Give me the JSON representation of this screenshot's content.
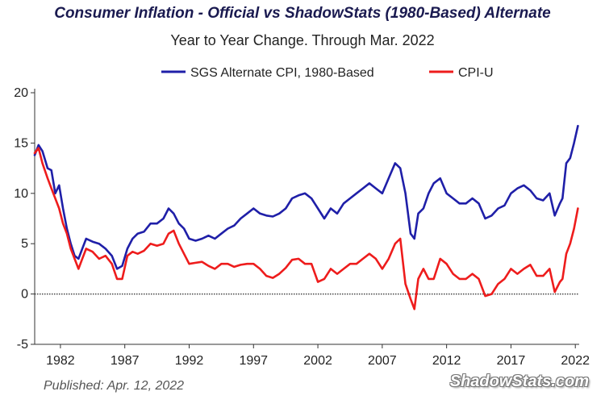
{
  "chart_data": {
    "type": "line",
    "title": "Consumer Inflation - Official vs ShadowStats (1980-Based) Alternate",
    "subtitle": "Year to Year Change. Through Mar. 2022",
    "xlabel": "",
    "ylabel": "",
    "xlim": [
      1980.0,
      2022.3
    ],
    "ylim": [
      -5,
      20
    ],
    "yticks": [
      -5,
      0,
      5,
      10,
      15,
      20
    ],
    "ytick_labels": [
      "-5",
      "0",
      "5",
      "10",
      "15",
      "20"
    ],
    "xticks": [
      1982,
      1987,
      1992,
      1997,
      2002,
      2007,
      2012,
      2017,
      2022
    ],
    "xtick_labels": [
      "1982",
      "1987",
      "1992",
      "1997",
      "2002",
      "2007",
      "2012",
      "2017",
      "2022"
    ],
    "zero_line": true,
    "grid": false,
    "legend_position": "top-center",
    "series": [
      {
        "name": "SGS Alternate CPI, 1980-Based",
        "color": "#1f1fa8",
        "x": [
          1980.0,
          1980.3,
          1980.6,
          1981.0,
          1981.3,
          1981.6,
          1981.9,
          1982.2,
          1982.5,
          1982.8,
          1983.1,
          1983.4,
          1983.7,
          1984.0,
          1984.5,
          1985.0,
          1985.5,
          1986.0,
          1986.4,
          1986.8,
          1987.2,
          1987.6,
          1988.0,
          1988.5,
          1989.0,
          1989.5,
          1990.0,
          1990.4,
          1990.8,
          1991.2,
          1991.6,
          1992.0,
          1992.5,
          1993.0,
          1993.5,
          1994.0,
          1994.5,
          1995.0,
          1995.5,
          1996.0,
          1996.5,
          1997.0,
          1997.5,
          1998.0,
          1998.5,
          1999.0,
          1999.5,
          2000.0,
          2000.5,
          2001.0,
          2001.5,
          2002.0,
          2002.5,
          2003.0,
          2003.5,
          2004.0,
          2004.5,
          2005.0,
          2005.5,
          2006.0,
          2006.5,
          2007.0,
          2007.5,
          2008.0,
          2008.4,
          2008.8,
          2009.2,
          2009.5,
          2009.8,
          2010.2,
          2010.6,
          2011.0,
          2011.5,
          2012.0,
          2012.5,
          2013.0,
          2013.5,
          2014.0,
          2014.5,
          2015.0,
          2015.5,
          2016.0,
          2016.5,
          2017.0,
          2017.5,
          2018.0,
          2018.5,
          2019.0,
          2019.5,
          2020.0,
          2020.4,
          2020.8,
          2021.0,
          2021.3,
          2021.6,
          2021.9,
          2022.2
        ],
        "values": [
          13.8,
          14.8,
          14.2,
          12.5,
          12.3,
          10.0,
          10.8,
          8.5,
          6.5,
          5.0,
          3.8,
          3.5,
          4.5,
          5.5,
          5.2,
          5.0,
          4.5,
          3.8,
          2.5,
          2.8,
          4.5,
          5.5,
          6.0,
          6.2,
          7.0,
          7.0,
          7.5,
          8.5,
          8.0,
          7.0,
          6.5,
          5.5,
          5.3,
          5.5,
          5.8,
          5.5,
          6.0,
          6.5,
          6.8,
          7.5,
          8.0,
          8.5,
          8.0,
          7.8,
          7.7,
          8.0,
          8.5,
          9.5,
          9.8,
          10.0,
          9.5,
          8.5,
          7.5,
          8.5,
          8.0,
          9.0,
          9.5,
          10.0,
          10.5,
          11.0,
          10.5,
          10.0,
          11.5,
          13.0,
          12.5,
          10.0,
          6.0,
          5.5,
          8.0,
          8.5,
          10.0,
          11.0,
          11.5,
          10.0,
          9.5,
          9.0,
          9.0,
          9.5,
          9.0,
          7.5,
          7.8,
          8.5,
          8.8,
          10.0,
          10.5,
          10.8,
          10.3,
          9.5,
          9.3,
          10.0,
          7.8,
          9.0,
          9.5,
          13.0,
          13.5,
          15.0,
          16.7
        ]
      },
      {
        "name": "CPI-U",
        "color": "#ee1c1c",
        "x": [
          1980.0,
          1980.3,
          1980.6,
          1981.0,
          1981.3,
          1981.6,
          1981.9,
          1982.2,
          1982.5,
          1982.8,
          1983.1,
          1983.4,
          1983.7,
          1984.0,
          1984.5,
          1985.0,
          1985.5,
          1986.0,
          1986.4,
          1986.8,
          1987.2,
          1987.6,
          1988.0,
          1988.5,
          1989.0,
          1989.5,
          1990.0,
          1990.4,
          1990.8,
          1991.2,
          1991.6,
          1992.0,
          1992.5,
          1993.0,
          1993.5,
          1994.0,
          1994.5,
          1995.0,
          1995.5,
          1996.0,
          1996.5,
          1997.0,
          1997.5,
          1998.0,
          1998.5,
          1999.0,
          1999.5,
          2000.0,
          2000.5,
          2001.0,
          2001.5,
          2002.0,
          2002.5,
          2003.0,
          2003.5,
          2004.0,
          2004.5,
          2005.0,
          2005.5,
          2006.0,
          2006.5,
          2007.0,
          2007.5,
          2008.0,
          2008.4,
          2008.8,
          2009.2,
          2009.5,
          2009.8,
          2010.2,
          2010.6,
          2011.0,
          2011.5,
          2012.0,
          2012.5,
          2013.0,
          2013.5,
          2014.0,
          2014.5,
          2015.0,
          2015.5,
          2016.0,
          2016.5,
          2017.0,
          2017.5,
          2018.0,
          2018.5,
          2019.0,
          2019.5,
          2020.0,
          2020.4,
          2020.8,
          2021.0,
          2021.3,
          2021.6,
          2021.9,
          2022.2
        ],
        "values": [
          14.0,
          14.5,
          13.0,
          11.5,
          10.5,
          9.5,
          8.5,
          7.0,
          6.0,
          4.5,
          3.5,
          2.5,
          3.5,
          4.5,
          4.2,
          3.5,
          3.8,
          3.0,
          1.5,
          1.5,
          3.8,
          4.2,
          4.0,
          4.3,
          5.0,
          4.8,
          5.0,
          6.0,
          6.3,
          5.0,
          4.0,
          3.0,
          3.1,
          3.2,
          2.8,
          2.5,
          3.0,
          3.0,
          2.7,
          2.9,
          3.0,
          3.0,
          2.5,
          1.8,
          1.6,
          2.0,
          2.6,
          3.4,
          3.5,
          3.0,
          3.0,
          1.2,
          1.5,
          2.5,
          2.0,
          2.5,
          3.0,
          3.0,
          3.5,
          4.0,
          3.5,
          2.5,
          3.5,
          5.0,
          5.5,
          1.0,
          -0.5,
          -1.5,
          1.5,
          2.5,
          1.5,
          1.5,
          3.5,
          3.0,
          2.0,
          1.5,
          1.5,
          2.0,
          1.5,
          -0.2,
          0.0,
          1.0,
          1.5,
          2.5,
          2.0,
          2.5,
          2.9,
          1.8,
          1.8,
          2.5,
          0.2,
          1.2,
          1.5,
          4.0,
          5.0,
          6.5,
          8.5
        ]
      }
    ],
    "published": "Published: Apr. 12, 2022",
    "brand": "ShadowStats.com"
  }
}
